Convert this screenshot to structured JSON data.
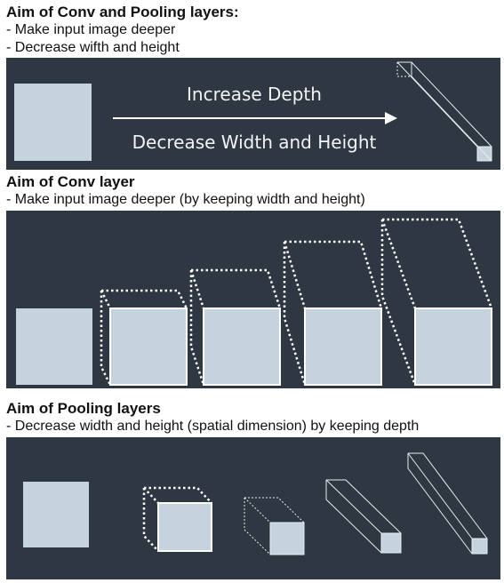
{
  "section1": {
    "title": "Aim of Conv and Pooling layers:",
    "bullets": [
      "- Make input image deeper",
      "- Decrease wifth and height"
    ],
    "diagram": {
      "label_top": "Increase Depth",
      "label_bottom": "Decrease Width and Height"
    }
  },
  "section2": {
    "title": "Aim of Conv layer",
    "bullets": [
      "- Make input image deeper (by keeping width and height)"
    ]
  },
  "section3": {
    "title": "Aim of Pooling layers",
    "bullets": [
      "- Decrease width and height (spatial dimension) by keeping depth"
    ]
  },
  "colors": {
    "panel_bg": "#2e3742",
    "face": "#c5d3de",
    "edge": "#ffffff",
    "text": "#111111"
  }
}
